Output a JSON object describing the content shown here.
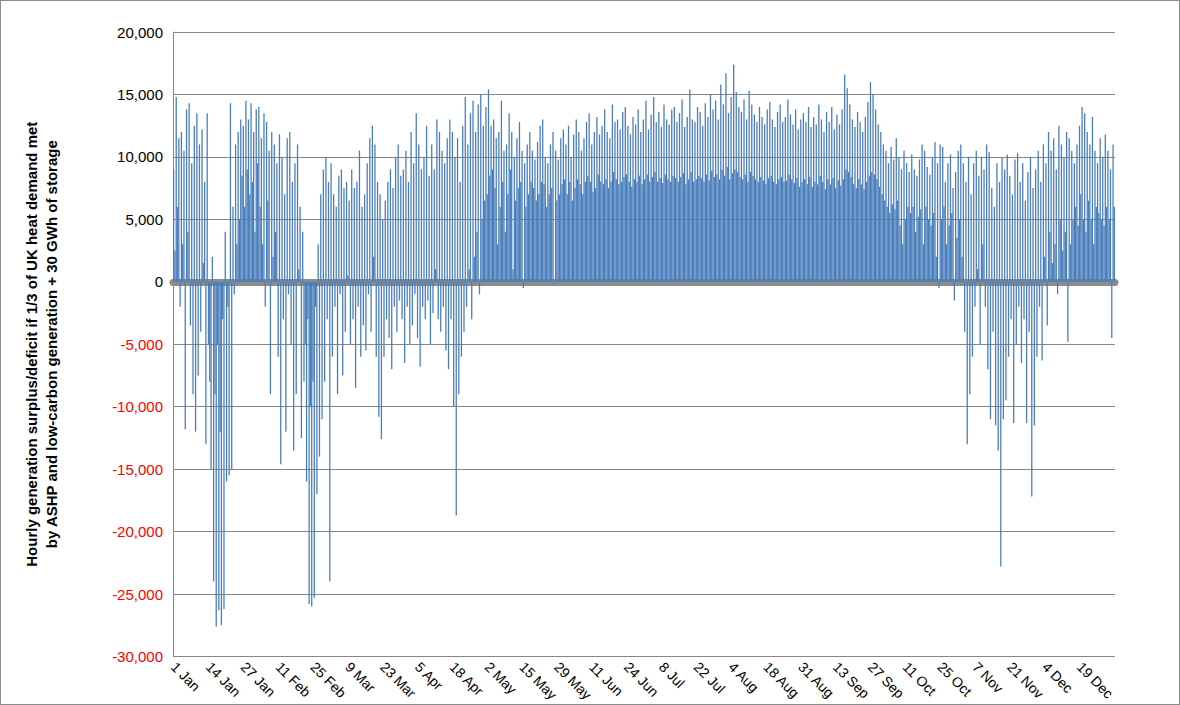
{
  "chart_data": {
    "type": "bar",
    "ylabel": [
      "Hourly generation surplus/deficit if 1/3 of UK heat demand met",
      "by ASHP and low-carbon generation + 30 GWh of storage"
    ],
    "color": "#4a7ebb",
    "grid": true,
    "ylim": [
      -30000,
      20000
    ],
    "yticks": [
      {
        "value": -30000,
        "label": "-30,000"
      },
      {
        "value": -25000,
        "label": "-25,000"
      },
      {
        "value": -20000,
        "label": "-20,000"
      },
      {
        "value": -15000,
        "label": "-15,000"
      },
      {
        "value": -10000,
        "label": "-10,000"
      },
      {
        "value": -5000,
        "label": "-5,000"
      },
      0,
      {
        "value": 5000,
        "label": "5,000"
      },
      {
        "value": 10000,
        "label": "10,000"
      },
      {
        "value": 15000,
        "label": "15,000"
      },
      {
        "value": 20000,
        "label": "20,000"
      }
    ],
    "categories": [
      "1 Jan",
      null,
      null,
      null,
      null,
      null,
      null,
      null,
      null,
      null,
      null,
      null,
      null,
      null,
      null,
      null,
      null,
      null,
      null,
      null,
      null,
      null,
      null,
      null,
      null,
      null,
      null,
      "14 Jan",
      null,
      null,
      null,
      null,
      null,
      null,
      null,
      null,
      null,
      null,
      null,
      null,
      null,
      null,
      null,
      null,
      null,
      null,
      null,
      null,
      null,
      null,
      null,
      null,
      null,
      null,
      "27 Jan",
      null,
      null,
      null,
      null,
      null,
      null,
      null,
      null,
      null,
      null,
      null,
      null,
      null,
      null,
      null,
      null,
      null,
      null,
      null,
      null,
      null,
      null,
      null,
      null,
      null,
      null,
      "11 Feb",
      null,
      null,
      null,
      null,
      null,
      null,
      null,
      null,
      null,
      null,
      null,
      null,
      null,
      null,
      null,
      null,
      null,
      null,
      null,
      null,
      null,
      null,
      null,
      null,
      null,
      null,
      "25 Feb",
      null,
      null,
      null,
      null,
      null,
      null,
      null,
      null,
      null,
      null,
      null,
      null,
      null,
      null,
      null,
      null,
      null,
      null,
      null,
      null,
      null,
      null,
      null,
      null,
      null,
      null,
      "9 Mar",
      null,
      null,
      null,
      null,
      null,
      null,
      null,
      null,
      null,
      null,
      null,
      null,
      null,
      null,
      null,
      null,
      null,
      null,
      null,
      null,
      null,
      null,
      null,
      null,
      null,
      null,
      "23 Mar",
      null,
      null,
      null,
      null,
      null,
      null,
      null,
      null,
      null,
      null,
      null,
      null,
      null,
      null,
      null,
      null,
      null,
      null,
      null,
      null,
      null,
      null,
      null,
      null,
      null,
      null,
      "5 Apr",
      null,
      null,
      null,
      null,
      null,
      null,
      null,
      null,
      null,
      null,
      null,
      null,
      null,
      null,
      null,
      null,
      null,
      null,
      null,
      null,
      null,
      null,
      null,
      null,
      null,
      null,
      "18 Apr",
      null,
      null,
      null,
      null,
      null,
      null,
      null,
      null,
      null,
      null,
      null,
      null,
      null,
      null,
      null,
      null,
      null,
      null,
      null,
      null,
      null,
      null,
      null,
      null,
      null,
      null,
      "2 May",
      null,
      null,
      null,
      null,
      null,
      null,
      null,
      null,
      null,
      null,
      null,
      null,
      null,
      null,
      null,
      null,
      null,
      null,
      null,
      null,
      null,
      null,
      null,
      null,
      null,
      null,
      "15 May",
      null,
      null,
      null,
      null,
      null,
      null,
      null,
      null,
      null,
      null,
      null,
      null,
      null,
      null,
      null,
      null,
      null,
      null,
      null,
      null,
      null,
      null,
      null,
      null,
      null,
      null,
      "29 May",
      null,
      null,
      null,
      null,
      null,
      null,
      null,
      null,
      null,
      null,
      null,
      null,
      null,
      null,
      null,
      null,
      null,
      null,
      null,
      null,
      null,
      null,
      null,
      null,
      null,
      null,
      "11 Jun",
      null,
      null,
      null,
      null,
      null,
      null,
      null,
      null,
      null,
      null,
      null,
      null,
      null,
      null,
      null,
      null,
      null,
      null,
      null,
      null,
      null,
      null,
      null,
      null,
      null,
      null,
      "24 Jun",
      null,
      null,
      null,
      null,
      null,
      null,
      null,
      null,
      null,
      null,
      null,
      null,
      null,
      null,
      null,
      null,
      null,
      null,
      null,
      null,
      null,
      null,
      null,
      null,
      null,
      null,
      "8 Jul",
      null,
      null,
      null,
      null,
      null,
      null,
      null,
      null,
      null,
      null,
      null,
      null,
      null,
      null,
      null,
      null,
      null,
      null,
      null,
      null,
      null,
      null,
      null,
      null,
      null,
      null,
      "22 Jul",
      null,
      null,
      null,
      null,
      null,
      null,
      null,
      null,
      null,
      null,
      null,
      null,
      null,
      null,
      null,
      null,
      null,
      null,
      null,
      null,
      null,
      null,
      null,
      null,
      null,
      null,
      "4 Aug",
      null,
      null,
      null,
      null,
      null,
      null,
      null,
      null,
      null,
      null,
      null,
      null,
      null,
      null,
      null,
      null,
      null,
      null,
      null,
      null,
      null,
      null,
      null,
      null,
      null,
      null,
      "18 Aug",
      null,
      null,
      null,
      null,
      null,
      null,
      null,
      null,
      null,
      null,
      null,
      null,
      null,
      null,
      null,
      null,
      null,
      null,
      null,
      null,
      null,
      null,
      null,
      null,
      null,
      null,
      "31 Aug",
      null,
      null,
      null,
      null,
      null,
      null,
      null,
      null,
      null,
      null,
      null,
      null,
      null,
      null,
      null,
      null,
      null,
      null,
      null,
      null,
      null,
      null,
      null,
      null,
      null,
      null,
      "13 Sep",
      null,
      null,
      null,
      null,
      null,
      null,
      null,
      null,
      null,
      null,
      null,
      null,
      null,
      null,
      null,
      null,
      null,
      null,
      null,
      null,
      null,
      null,
      null,
      null,
      null,
      null,
      "27 Sep",
      null,
      null,
      null,
      null,
      null,
      null,
      null,
      null,
      null,
      null,
      null,
      null,
      null,
      null,
      null,
      null,
      null,
      null,
      null,
      null,
      null,
      null,
      null,
      null,
      null,
      null,
      "11 Oct",
      null,
      null,
      null,
      null,
      null,
      null,
      null,
      null,
      null,
      null,
      null,
      null,
      null,
      null,
      null,
      null,
      null,
      null,
      null,
      null,
      null,
      null,
      null,
      null,
      null,
      null,
      "25 Oct",
      null,
      null,
      null,
      null,
      null,
      null,
      null,
      null,
      null,
      null,
      null,
      null,
      null,
      null,
      null,
      null,
      null,
      null,
      null,
      null,
      null,
      null,
      null,
      null,
      null,
      null,
      "7 Nov",
      null,
      null,
      null,
      null,
      null,
      null,
      null,
      null,
      null,
      null,
      null,
      null,
      null,
      null,
      null,
      null,
      null,
      null,
      null,
      null,
      null,
      null,
      null,
      null,
      null,
      null,
      "21 Nov",
      null,
      null,
      null,
      null,
      null,
      null,
      null,
      null,
      null,
      null,
      null,
      null,
      null,
      null,
      null,
      null,
      null,
      null,
      null,
      null,
      null,
      null,
      null,
      null,
      null,
      null,
      "4 Dec",
      null,
      null,
      null,
      null,
      null,
      null,
      null,
      null,
      null,
      null,
      null,
      null,
      null,
      null,
      null,
      null,
      null,
      null,
      null,
      null,
      null,
      null,
      null,
      null,
      null,
      null,
      "19 Dec",
      null,
      null,
      null,
      null,
      null,
      null,
      null,
      null,
      null,
      null,
      null,
      null,
      null,
      null,
      null,
      null,
      null,
      null,
      null,
      null,
      null,
      null,
      null,
      null,
      null,
      null,
      null
    ],
    "values": [
      9000,
      2500,
      14800,
      6000,
      11500,
      -2000,
      12000,
      3000,
      10500,
      -11800,
      13800,
      4000,
      14300,
      -3500,
      9500,
      -9000,
      12500,
      -12000,
      13500,
      -7500,
      11000,
      -4000,
      12200,
      1500,
      8000,
      -13000,
      13500,
      -5000,
      -8000,
      -15000,
      2000,
      -24000,
      -9000,
      -27600,
      -5000,
      -26300,
      -12000,
      -27500,
      -3000,
      -26200,
      4000,
      -16000,
      -2000,
      -15500,
      14300,
      -15000,
      6000,
      -1000,
      11000,
      3000,
      12000,
      5000,
      13000,
      8500,
      12500,
      6000,
      14500,
      9000,
      13000,
      7000,
      14300,
      8000,
      12000,
      4000,
      13800,
      9500,
      14000,
      6000,
      11500,
      3000,
      13500,
      -2000,
      12800,
      6500,
      10500,
      -9000,
      12000,
      2000,
      11000,
      4000,
      9500,
      -6000,
      11800,
      -14600,
      10000,
      -3000,
      7000,
      -12000,
      11500,
      -1000,
      12000,
      -5000,
      8000,
      -13500,
      9500,
      -9000,
      11000,
      1000,
      6000,
      -12500,
      4000,
      -8000,
      -5000,
      -16000,
      -3000,
      -25800,
      -10000,
      -26000,
      -8000,
      -25300,
      -2000,
      -17000,
      3000,
      -14000,
      7000,
      -11000,
      9000,
      -8000,
      10000,
      -3000,
      8000,
      -24000,
      9500,
      -6000,
      7000,
      -2000,
      6000,
      -9000,
      8500,
      -1000,
      9000,
      -7500,
      7500,
      -4000,
      8000,
      500,
      6500,
      -5000,
      9000,
      -3000,
      7500,
      -8500,
      8000,
      -2000,
      10500,
      -6000,
      6000,
      -3500,
      7000,
      -5500,
      9500,
      -1000,
      11500,
      -4000,
      12500,
      2000,
      11000,
      -6000,
      8000,
      -10800,
      7000,
      -12600,
      5000,
      -6000,
      6500,
      -3000,
      8000,
      -4500,
      9000,
      -7000,
      7500,
      -2000,
      10000,
      -4000,
      11000,
      -1500,
      8500,
      -3000,
      9000,
      -6500,
      10500,
      -2000,
      8000,
      -5000,
      12000,
      -3500,
      9500,
      -1000,
      13500,
      -4500,
      11000,
      -6800,
      9000,
      -2000,
      10000,
      -3000,
      12500,
      -1500,
      8500,
      -5000,
      11000,
      -2500,
      9000,
      1000,
      13000,
      -3000,
      12000,
      -4000,
      10500,
      -2000,
      9500,
      -5500,
      11500,
      -7000,
      13000,
      -3000,
      12000,
      -10000,
      10000,
      -18700,
      11500,
      -9000,
      8000,
      -6000,
      12500,
      -4000,
      14800,
      -2000,
      11000,
      1000,
      13500,
      -3000,
      14500,
      2000,
      12000,
      4000,
      14200,
      -1000,
      15000,
      5000,
      12500,
      6500,
      14000,
      7000,
      15400,
      8500,
      12500,
      9000,
      13000,
      7500,
      11500,
      3000,
      12000,
      6000,
      14500,
      8000,
      10500,
      4000,
      11000,
      7000,
      13500,
      9000,
      12000,
      1000,
      10000,
      6500,
      11500,
      7500,
      12800,
      8000,
      10500,
      -500,
      9500,
      6000,
      11000,
      7000,
      12000,
      8000,
      10500,
      7500,
      9800,
      6500,
      11200,
      7000,
      12500,
      8000,
      13000,
      7800,
      10000,
      6000,
      9500,
      7000,
      11000,
      7500,
      12000,
      -200,
      10500,
      6500,
      9800,
      7000,
      11500,
      7800,
      12200,
      8200,
      11000,
      7000,
      12500,
      8000,
      10000,
      6500,
      11800,
      7500,
      13000,
      8200,
      12000,
      7800,
      10500,
      7000,
      11500,
      8000,
      12800,
      8500,
      13500,
      8000,
      11000,
      7200,
      12000,
      7500,
      13200,
      8600,
      11800,
      8000,
      12500,
      7800,
      13800,
      8200,
      12000,
      7500,
      11500,
      8000,
      14200,
      8800,
      12800,
      8200,
      13000,
      7800,
      12200,
      8000,
      13600,
      8400,
      14000,
      8600,
      12500,
      8000,
      11800,
      7600,
      13200,
      8200,
      12600,
      8000,
      13800,
      8500,
      12000,
      7800,
      13000,
      8200,
      14500,
      8600,
      12200,
      8000,
      13400,
      8400,
      14800,
      8800,
      12800,
      8000,
      13600,
      8300,
      12400,
      7900,
      14200,
      8600,
      13000,
      8200,
      12600,
      8000,
      13800,
      8500,
      14000,
      8300,
      12800,
      8000,
      13500,
      8400,
      14600,
      8700,
      12400,
      7800,
      13200,
      8200,
      15400,
      8800,
      13000,
      8000,
      12800,
      8200,
      14000,
      8500,
      13600,
      8300,
      12500,
      8000,
      14300,
      8600,
      13200,
      8100,
      15000,
      8900,
      13800,
      8400,
      14500,
      8600,
      13000,
      8200,
      15800,
      9000,
      14200,
      8500,
      16700,
      9200,
      13500,
      8200,
      14800,
      8700,
      17400,
      9000,
      15200,
      8800,
      14000,
      8400,
      13600,
      8200,
      14600,
      8600,
      13000,
      8000,
      15300,
      8800,
      14200,
      8500,
      13400,
      8200,
      12800,
      8000,
      14000,
      8400,
      13200,
      8100,
      12600,
      7800,
      13800,
      8300,
      14400,
      8500,
      13000,
      8000,
      12400,
      7800,
      13600,
      8200,
      14200,
      8400,
      12800,
      8000,
      13200,
      8100,
      14600,
      8600,
      13400,
      8200,
      12600,
      7900,
      13800,
      8300,
      12200,
      7600,
      13000,
      8000,
      13500,
      8200,
      12800,
      7800,
      14000,
      8400,
      12400,
      7600,
      13200,
      8000,
      12600,
      7800,
      14200,
      8500,
      13000,
      8000,
      12000,
      7400,
      13600,
      8200,
      12800,
      7800,
      14000,
      8300,
      12200,
      7500,
      13400,
      8100,
      12600,
      7700,
      13800,
      8200,
      16600,
      9000,
      15500,
      8800,
      14200,
      8400,
      13000,
      7800,
      12400,
      7500,
      13600,
      8200,
      12800,
      7800,
      12000,
      7400,
      13200,
      8000,
      14400,
      8500,
      16000,
      8800,
      15000,
      8600,
      13800,
      8200,
      12600,
      7600,
      12000,
      7000,
      11000,
      6500,
      10500,
      6000,
      9500,
      5500,
      10800,
      6200,
      9800,
      5800,
      11500,
      6500,
      10000,
      4500,
      9000,
      3000,
      10500,
      5000,
      9500,
      6000,
      8800,
      5500,
      10200,
      6000,
      9000,
      4000,
      8500,
      5200,
      9800,
      5800,
      11000,
      3000,
      10500,
      6000,
      9200,
      5000,
      8600,
      4500,
      10000,
      5500,
      11200,
      2000,
      9500,
      -500,
      11000,
      5000,
      10800,
      6000,
      8000,
      3000,
      9500,
      4500,
      10200,
      5500,
      7500,
      -1500,
      8800,
      3500,
      10500,
      5000,
      11000,
      2000,
      9500,
      -4000,
      8000,
      -13000,
      10000,
      -9000,
      7000,
      -6000,
      9500,
      -2000,
      10500,
      1000,
      8500,
      -5000,
      10000,
      3000,
      9000,
      -2000,
      11000,
      -7000,
      10400,
      -11000,
      7500,
      -4000,
      6000,
      -11500,
      9500,
      -13500,
      8000,
      -22800,
      10000,
      -11000,
      9000,
      -9500,
      10200,
      -6000,
      8500,
      -3000,
      7000,
      -11300,
      9800,
      -5000,
      10300,
      -2000,
      8000,
      -6500,
      9500,
      -3000,
      6500,
      -11300,
      8800,
      -4000,
      10000,
      -17200,
      7500,
      -11500,
      9000,
      -6000,
      10500,
      -2000,
      8000,
      -6300,
      11000,
      2000,
      9500,
      -3500,
      12000,
      4000,
      10500,
      1500,
      11500,
      3000,
      9000,
      -1000,
      12500,
      5000,
      11000,
      2500,
      10000,
      4000,
      12000,
      -4800,
      11500,
      3000,
      10500,
      5000,
      9500,
      6000,
      11000,
      4500,
      12500,
      7000,
      14000,
      5000,
      13500,
      4000,
      12000,
      6500,
      11000,
      5000,
      13200,
      3000,
      10500,
      6000,
      9500,
      5500,
      11500,
      5000,
      10000,
      4500,
      11800,
      6000,
      10500,
      5000,
      9000,
      -4500,
      11000,
      6000
    ]
  }
}
